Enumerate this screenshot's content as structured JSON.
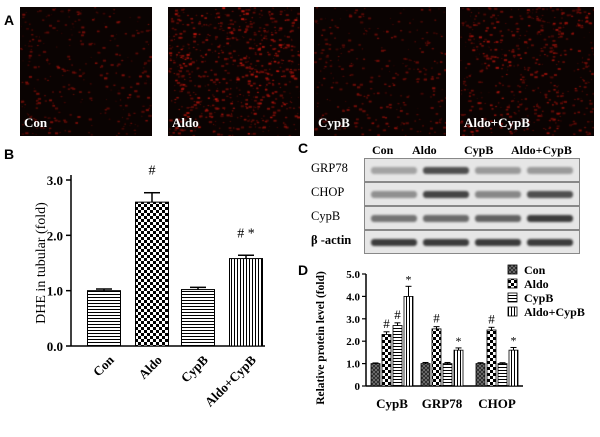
{
  "panels": {
    "a": {
      "letter": "A",
      "images": [
        {
          "label": "Con",
          "density": 0.35
        },
        {
          "label": "Aldo",
          "density": 0.8
        },
        {
          "label": "CypB",
          "density": 0.35
        },
        {
          "label": "Aldo+CypB",
          "density": 0.6
        }
      ]
    },
    "b": {
      "letter": "B"
    },
    "c": {
      "letter": "C",
      "lanes": [
        "Con",
        "Aldo",
        "CypB",
        "Aldo+CypB"
      ],
      "rows": [
        {
          "label": "GRP78",
          "intensities": [
            0.3,
            0.75,
            0.35,
            0.35
          ]
        },
        {
          "label": "CHOP",
          "intensities": [
            0.4,
            0.8,
            0.45,
            0.75
          ]
        },
        {
          "label": "CypB",
          "intensities": [
            0.55,
            0.6,
            0.65,
            0.85
          ]
        },
        {
          "label": "β -actin",
          "intensities": [
            0.85,
            0.85,
            0.85,
            0.85
          ]
        }
      ]
    },
    "d": {
      "letter": "D"
    }
  },
  "chart_data": [
    {
      "type": "bar",
      "panel": "B",
      "categories": [
        "Con",
        "Aldo",
        "CypB",
        "Aldo+CypB"
      ],
      "values": [
        1.0,
        2.6,
        1.02,
        1.58
      ],
      "errors": [
        0.03,
        0.17,
        0.04,
        0.06
      ],
      "ylabel": "DHE in tubular (fold)",
      "ylim": [
        0,
        3.0
      ],
      "yticks": [
        "0.0",
        "1.0",
        "2.0",
        "3.0"
      ],
      "annotations": [
        "",
        "#",
        "",
        "# *"
      ],
      "patterns": [
        "hlines",
        "checker",
        "hlines",
        "vlines"
      ]
    },
    {
      "type": "bar",
      "panel": "D",
      "categories": [
        "CypB",
        "GRP78",
        "CHOP"
      ],
      "series": [
        {
          "name": "Con",
          "values": [
            1.0,
            1.0,
            1.0
          ],
          "errors": [
            0.03,
            0.05,
            0.04
          ],
          "pattern": "crosshatch"
        },
        {
          "name": "Aldo",
          "values": [
            2.3,
            2.55,
            2.5
          ],
          "errors": [
            0.12,
            0.1,
            0.12
          ],
          "pattern": "checker"
        },
        {
          "name": "CypB",
          "values": [
            2.7,
            1.0,
            1.0
          ],
          "errors": [
            0.12,
            0.05,
            0.04
          ],
          "pattern": "hlines"
        },
        {
          "name": "Aldo+CypB",
          "values": [
            4.0,
            1.6,
            1.6
          ],
          "errors": [
            0.45,
            0.1,
            0.12
          ],
          "pattern": "vlines"
        }
      ],
      "ylabel": "Relative protein level (fold)",
      "ylim": [
        0,
        5.0
      ],
      "yticks": [
        "0",
        "1.0",
        "2.0",
        "3.0",
        "4.0",
        "5.0"
      ],
      "annotations": [
        [
          "",
          "#",
          "#",
          "*"
        ],
        [
          "",
          "#",
          "",
          "*"
        ],
        [
          "",
          "#",
          "",
          "*"
        ]
      ],
      "legend_position": "top-right"
    }
  ]
}
